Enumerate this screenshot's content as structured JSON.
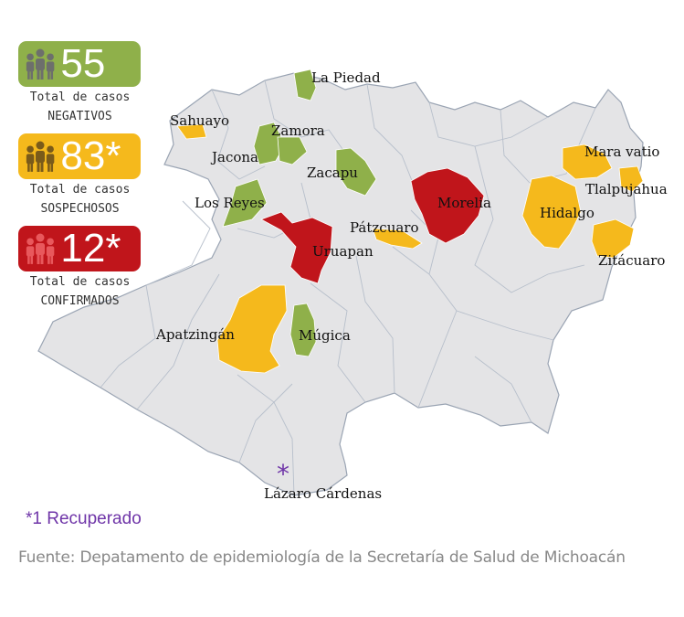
{
  "colors": {
    "negative": "#8fb04a",
    "suspected": "#f5b91c",
    "confirmed": "#c0151b",
    "neutral": "#e4e4e6",
    "recovered": "#6f35a8"
  },
  "stats": [
    {
      "id": "negative",
      "count": "55",
      "caption_line1": "Total de casos",
      "caption_line2": "NEGATIVOS",
      "color": "#8fb04a",
      "icon_color": "#6d6f6c",
      "icon": "people-icon"
    },
    {
      "id": "suspected",
      "count": "83*",
      "caption_line1": "Total de casos",
      "caption_line2": "SOSPECHOSOS",
      "color": "#f5b91c",
      "icon_color": "#7a5b1a",
      "icon": "people-icon"
    },
    {
      "id": "confirmed",
      "count": "12*",
      "caption_line1": "Total de casos",
      "caption_line2": "CONFIRMADOS",
      "color": "#c0151b",
      "icon_color": "#e8585c",
      "icon": "people-icon"
    }
  ],
  "municipalities": [
    {
      "name": "La Piedad",
      "status": "negative"
    },
    {
      "name": "Sahuayo",
      "status": "suspected"
    },
    {
      "name": "Zamora",
      "status": "negative"
    },
    {
      "name": "Jacona",
      "status": "negative"
    },
    {
      "name": "Zacapu",
      "status": "negative"
    },
    {
      "name": "Los Reyes",
      "status": "negative"
    },
    {
      "name": "Uruapan",
      "status": "confirmed"
    },
    {
      "name": "Pátzcuaro",
      "status": "suspected"
    },
    {
      "name": "Morelia",
      "status": "confirmed"
    },
    {
      "name": "Mara vatio",
      "status": "suspected"
    },
    {
      "name": "Tlalpujahua",
      "status": "suspected"
    },
    {
      "name": "Hidalgo",
      "status": "suspected"
    },
    {
      "name": "Zitácuaro",
      "status": "suspected"
    },
    {
      "name": "Apatzingán",
      "status": "suspected"
    },
    {
      "name": "Múgica",
      "status": "negative"
    },
    {
      "name": "Lázaro Cárdenas",
      "status": "recovered"
    }
  ],
  "recovered_marker": "*",
  "footnote": "*1 Recuperado",
  "source": "Fuente: Depatamento de epidemiología de la Secretaría de Salud de Michoacán"
}
